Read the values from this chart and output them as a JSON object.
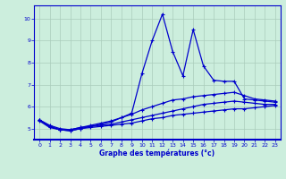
{
  "xlabel": "Graphe des températures (°c)",
  "background_color": "#cceedd",
  "grid_color": "#aaccbb",
  "line_color": "#0000cc",
  "xlim": [
    -0.5,
    23.5
  ],
  "ylim": [
    4.5,
    10.6
  ],
  "xticks": [
    0,
    1,
    2,
    3,
    4,
    5,
    6,
    7,
    8,
    9,
    10,
    11,
    12,
    13,
    14,
    15,
    16,
    17,
    18,
    19,
    20,
    21,
    22,
    23
  ],
  "yticks": [
    5,
    6,
    7,
    8,
    9,
    10
  ],
  "lines": [
    [
      5.4,
      5.1,
      4.95,
      4.9,
      5.0,
      5.05,
      5.1,
      5.15,
      5.2,
      5.25,
      5.35,
      5.45,
      5.5,
      5.6,
      5.65,
      5.7,
      5.75,
      5.8,
      5.85,
      5.9,
      5.9,
      5.95,
      6.0,
      6.05
    ],
    [
      5.35,
      5.05,
      4.95,
      4.95,
      5.05,
      5.1,
      5.15,
      5.2,
      5.3,
      5.4,
      5.5,
      5.6,
      5.7,
      5.8,
      5.9,
      6.0,
      6.1,
      6.15,
      6.2,
      6.25,
      6.2,
      6.15,
      6.1,
      6.1
    ],
    [
      5.4,
      5.15,
      5.0,
      4.95,
      5.05,
      5.15,
      5.25,
      5.35,
      5.5,
      5.65,
      5.85,
      6.0,
      6.15,
      6.3,
      6.35,
      6.45,
      6.5,
      6.55,
      6.6,
      6.65,
      6.5,
      6.35,
      6.3,
      6.25
    ],
    [
      5.4,
      5.1,
      4.95,
      4.9,
      5.0,
      5.1,
      5.2,
      5.3,
      5.5,
      5.7,
      7.5,
      9.0,
      10.2,
      8.5,
      7.4,
      9.5,
      7.85,
      7.2,
      7.15,
      7.15,
      6.35,
      6.3,
      6.25,
      6.2
    ]
  ]
}
